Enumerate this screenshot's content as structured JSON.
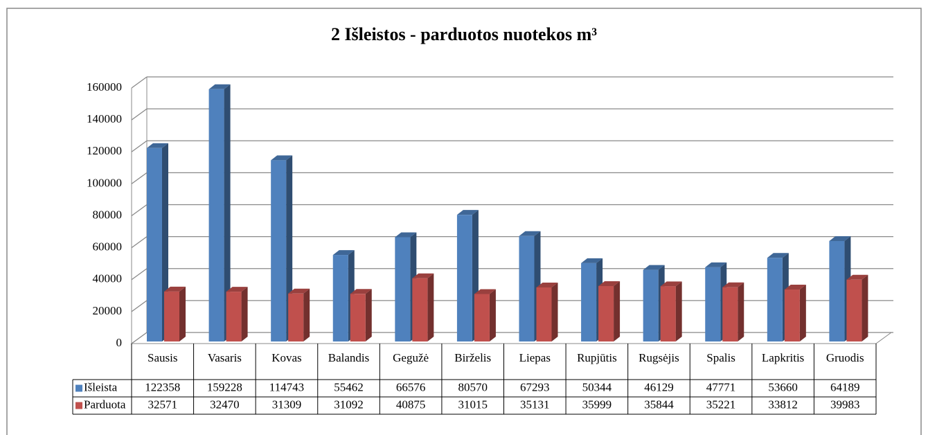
{
  "chart_data": {
    "type": "bar",
    "title": "2 Išleistos - parduotos nuotekos  m³",
    "categories": [
      "Sausis",
      "Vasaris",
      "Kovas",
      "Balandis",
      "Gegužė",
      "Birželis",
      "Liepas",
      "Rupjūtis",
      "Rugsėjis",
      "Spalis",
      "Lapkritis",
      "Gruodis"
    ],
    "series": [
      {
        "name": "Išleista",
        "color": "#4f81bd",
        "values": [
          122358,
          159228,
          114743,
          55462,
          66576,
          80570,
          67293,
          50344,
          46129,
          47771,
          53660,
          64189
        ]
      },
      {
        "name": "Parduota",
        "color": "#c0504d",
        "values": [
          32571,
          32470,
          31309,
          31092,
          40875,
          31015,
          35131,
          35999,
          35844,
          35221,
          33812,
          39983
        ]
      }
    ],
    "ylim": [
      0,
      160000
    ],
    "yticks": [
      0,
      20000,
      40000,
      60000,
      80000,
      100000,
      120000,
      140000,
      160000
    ],
    "grid": true,
    "legend": "table"
  }
}
